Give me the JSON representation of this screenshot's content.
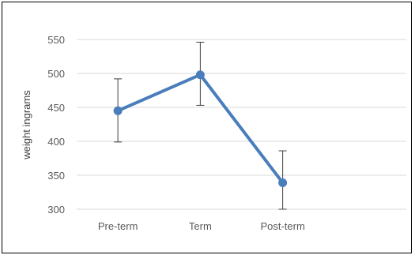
{
  "chart_data": {
    "type": "line",
    "title": "",
    "xlabel": "",
    "ylabel": "weight ingrams",
    "categories": [
      "Pre-term",
      "Term",
      "Post-term"
    ],
    "series": [
      {
        "values": [
          445,
          498,
          339
        ],
        "error_upper": [
          492,
          546,
          386
        ],
        "error_lower": [
          399,
          453,
          300
        ]
      }
    ],
    "ylim": [
      300,
      550
    ],
    "yticks": [
      300,
      350,
      400,
      450,
      500,
      550
    ],
    "grid": true,
    "legend": "none",
    "colors": {
      "line": "#4a7ebb",
      "marker": "#4a7ebb",
      "grid": "#d9d9d9",
      "error": "#404040"
    }
  }
}
